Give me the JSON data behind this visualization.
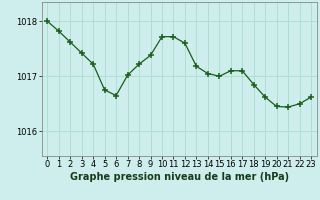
{
  "x": [
    0,
    1,
    2,
    3,
    4,
    5,
    6,
    7,
    8,
    9,
    10,
    11,
    12,
    13,
    14,
    15,
    16,
    17,
    18,
    19,
    20,
    21,
    22,
    23
  ],
  "y": [
    1018.0,
    1017.82,
    1017.62,
    1017.42,
    1017.22,
    1016.75,
    1016.65,
    1017.02,
    1017.22,
    1017.38,
    1017.72,
    1017.72,
    1017.6,
    1017.18,
    1017.05,
    1017.0,
    1017.1,
    1017.1,
    1016.85,
    1016.62,
    1016.45,
    1016.44,
    1016.5,
    1016.62
  ],
  "line_color": "#1a5c1a",
  "marker_color": "#1a5c1a",
  "bg_color": "#ceeeed",
  "grid_color": "#aaddcc",
  "spine_color": "#888888",
  "ylabel_ticks": [
    1016,
    1017,
    1018
  ],
  "xlabel": "Graphe pression niveau de la mer (hPa)",
  "ylim": [
    1015.55,
    1018.35
  ],
  "xlim": [
    -0.5,
    23.5
  ],
  "tick_fontsize": 6,
  "xlabel_fontsize": 7
}
